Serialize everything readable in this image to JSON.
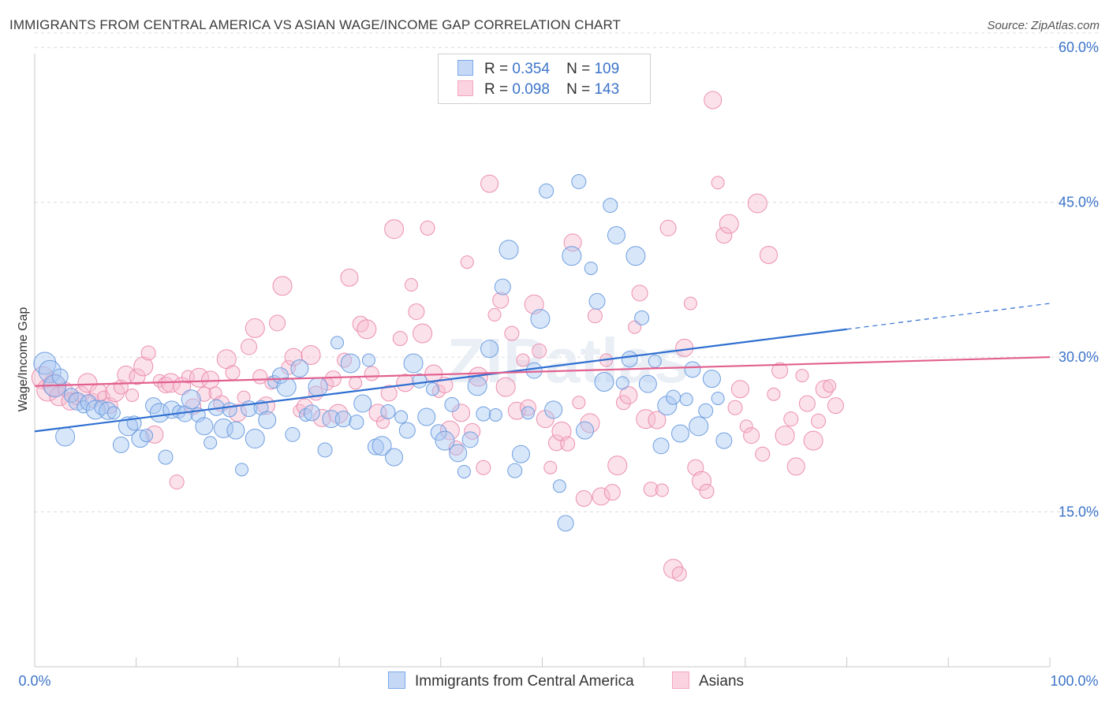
{
  "title": "IMMIGRANTS FROM CENTRAL AMERICA VS ASIAN WAGE/INCOME GAP CORRELATION CHART",
  "source": "Source: ZipAtlas.com",
  "watermark": "ZIPatlas",
  "legend": {
    "rows": [
      {
        "r_label": "R =",
        "r_value": "0.354",
        "n_label": "N =",
        "n_value": "109",
        "color": "#a9c8f2"
      },
      {
        "r_label": "R =",
        "r_value": "0.098",
        "n_label": "N =",
        "n_value": "143",
        "color": "#f6bdd0"
      }
    ]
  },
  "bottom_legend": [
    {
      "label": "Immigrants from Central America",
      "color": "#a9c8f2"
    },
    {
      "label": "Asians",
      "color": "#f6bdd0"
    }
  ],
  "chart_data": {
    "type": "scatter",
    "title": "IMMIGRANTS FROM CENTRAL AMERICA VS ASIAN WAGE/INCOME GAP CORRELATION CHART",
    "xlabel": "",
    "ylabel": "Wage/Income Gap",
    "xlim": [
      0,
      100
    ],
    "ylim": [
      0,
      62
    ],
    "x_tick_labels": [
      "0.0%",
      "100.0%"
    ],
    "y_ticks": [
      15,
      30,
      45,
      60
    ],
    "y_tick_labels": [
      "15.0%",
      "30.0%",
      "45.0%",
      "60.0%"
    ],
    "grid": true,
    "legend_position": "top-center",
    "series": [
      {
        "name": "Immigrants from Central America",
        "color": "#7aa9e8",
        "line_color": "#2f6fd0",
        "trend": {
          "x": [
            0,
            80
          ],
          "y": [
            22.8,
            32.7
          ],
          "dashed_to": [
            100,
            35.2
          ]
        },
        "points": [
          [
            1,
            29.4
          ],
          [
            1.5,
            28.6
          ],
          [
            2,
            27.2
          ],
          [
            2.5,
            28.1
          ],
          [
            3,
            22.3
          ],
          [
            3.6,
            26.3
          ],
          [
            4.2,
            25.7
          ],
          [
            4.8,
            25.2
          ],
          [
            5.3,
            25.6
          ],
          [
            6,
            24.9
          ],
          [
            6.6,
            25.1
          ],
          [
            7.2,
            24.8
          ],
          [
            7.8,
            24.6
          ],
          [
            8.5,
            21.5
          ],
          [
            9.2,
            23.3
          ],
          [
            9.8,
            23.6
          ],
          [
            10.4,
            22.1
          ],
          [
            11,
            22.4
          ],
          [
            11.7,
            25.3
          ],
          [
            12.3,
            24.6
          ],
          [
            12.9,
            20.3
          ],
          [
            13.5,
            24.9
          ],
          [
            14.2,
            24.7
          ],
          [
            14.8,
            24.5
          ],
          [
            15.4,
            25.9
          ],
          [
            16.1,
            24.4
          ],
          [
            16.7,
            23.3
          ],
          [
            17.3,
            21.7
          ],
          [
            17.9,
            25.1
          ],
          [
            18.6,
            23.1
          ],
          [
            19.2,
            24.9
          ],
          [
            19.8,
            22.9
          ],
          [
            20.4,
            19.1
          ],
          [
            21.1,
            25.0
          ],
          [
            21.7,
            22.1
          ],
          [
            22.3,
            25.1
          ],
          [
            22.9,
            23.9
          ],
          [
            23.6,
            27.6
          ],
          [
            24.2,
            28.2
          ],
          [
            24.8,
            27.1
          ],
          [
            25.4,
            22.5
          ],
          [
            26.1,
            28.9
          ],
          [
            26.7,
            24.4
          ],
          [
            27.3,
            24.6
          ],
          [
            27.9,
            27.1
          ],
          [
            28.6,
            21.0
          ],
          [
            29.2,
            24.0
          ],
          [
            29.8,
            31.4
          ],
          [
            30.4,
            24.0
          ],
          [
            31.1,
            29.4
          ],
          [
            31.7,
            23.7
          ],
          [
            32.3,
            25.5
          ],
          [
            32.9,
            29.7
          ],
          [
            33.6,
            21.3
          ],
          [
            34.2,
            21.4
          ],
          [
            34.8,
            24.7
          ],
          [
            35.4,
            20.3
          ],
          [
            36.1,
            24.2
          ],
          [
            36.7,
            22.9
          ],
          [
            37.3,
            29.4
          ],
          [
            37.9,
            27.7
          ],
          [
            38.6,
            24.2
          ],
          [
            39.2,
            26.9
          ],
          [
            39.8,
            22.7
          ],
          [
            40.4,
            21.9
          ],
          [
            41.1,
            25.4
          ],
          [
            41.7,
            20.7
          ],
          [
            42.3,
            18.9
          ],
          [
            42.9,
            22.0
          ],
          [
            43.6,
            27.2
          ],
          [
            44.2,
            24.5
          ],
          [
            44.8,
            30.8
          ],
          [
            45.4,
            24.4
          ],
          [
            46.1,
            36.8
          ],
          [
            46.7,
            40.4
          ],
          [
            47.3,
            19.0
          ],
          [
            47.9,
            20.6
          ],
          [
            48.6,
            24.6
          ],
          [
            49.2,
            28.7
          ],
          [
            49.8,
            33.7
          ],
          [
            50.4,
            46.1
          ],
          [
            51.1,
            24.9
          ],
          [
            51.7,
            17.5
          ],
          [
            52.3,
            13.9
          ],
          [
            52.9,
            39.8
          ],
          [
            53.6,
            47.0
          ],
          [
            54.2,
            22.9
          ],
          [
            54.8,
            38.6
          ],
          [
            55.4,
            35.4
          ],
          [
            56.1,
            27.6
          ],
          [
            56.7,
            44.7
          ],
          [
            57.3,
            41.8
          ],
          [
            57.9,
            27.5
          ],
          [
            58.6,
            29.8
          ],
          [
            59.2,
            39.8
          ],
          [
            59.8,
            33.8
          ],
          [
            60.4,
            27.4
          ],
          [
            61.1,
            29.6
          ],
          [
            61.7,
            21.4
          ],
          [
            62.3,
            25.3
          ],
          [
            62.9,
            26.1
          ],
          [
            63.6,
            22.6
          ],
          [
            64.2,
            25.9
          ],
          [
            64.8,
            28.8
          ],
          [
            65.4,
            23.3
          ],
          [
            66.1,
            24.8
          ],
          [
            66.7,
            27.9
          ],
          [
            67.3,
            26.0
          ],
          [
            67.9,
            21.9
          ]
        ]
      },
      {
        "name": "Asians",
        "color": "#f3a6c0",
        "line_color": "#e2608f",
        "trend": {
          "x": [
            0,
            100
          ],
          "y": [
            27.2,
            30.0
          ]
        },
        "points": [
          [
            0.8,
            28.0
          ],
          [
            1.3,
            26.8
          ],
          [
            1.9,
            27.3
          ],
          [
            2.4,
            26.2
          ],
          [
            3,
            26.9
          ],
          [
            3.5,
            25.7
          ],
          [
            4.1,
            26.0
          ],
          [
            4.6,
            26.4
          ],
          [
            5.2,
            27.5
          ],
          [
            5.7,
            25.8
          ],
          [
            6.3,
            26.6
          ],
          [
            6.8,
            26.1
          ],
          [
            7.4,
            25.3
          ],
          [
            7.9,
            26.6
          ],
          [
            8.5,
            27.1
          ],
          [
            9,
            28.3
          ],
          [
            9.6,
            26.3
          ],
          [
            10.1,
            28.1
          ],
          [
            10.7,
            29.1
          ],
          [
            11.2,
            30.4
          ],
          [
            11.8,
            22.5
          ],
          [
            12.3,
            27.7
          ],
          [
            12.9,
            27.3
          ],
          [
            13.4,
            27.5
          ],
          [
            14,
            17.9
          ],
          [
            14.5,
            27.2
          ],
          [
            15.1,
            28.1
          ],
          [
            15.6,
            25.2
          ],
          [
            16.2,
            28.0
          ],
          [
            16.7,
            26.4
          ],
          [
            17.3,
            27.8
          ],
          [
            17.8,
            26.5
          ],
          [
            18.4,
            25.5
          ],
          [
            18.9,
            29.8
          ],
          [
            19.5,
            28.5
          ],
          [
            20,
            24.6
          ],
          [
            20.6,
            26.1
          ],
          [
            21.1,
            31.0
          ],
          [
            21.7,
            32.8
          ],
          [
            22.2,
            28.1
          ],
          [
            22.8,
            25.3
          ],
          [
            23.3,
            27.5
          ],
          [
            23.9,
            33.3
          ],
          [
            24.4,
            36.9
          ],
          [
            25,
            29.0
          ],
          [
            25.5,
            30.0
          ],
          [
            26.1,
            24.8
          ],
          [
            26.6,
            25.2
          ],
          [
            27.2,
            30.2
          ],
          [
            27.7,
            26.5
          ],
          [
            28.3,
            24.1
          ],
          [
            28.8,
            27.4
          ],
          [
            29.4,
            27.9
          ],
          [
            29.9,
            24.5
          ],
          [
            30.5,
            29.7
          ],
          [
            31,
            37.7
          ],
          [
            31.6,
            27.5
          ],
          [
            32.1,
            33.2
          ],
          [
            32.7,
            32.7
          ],
          [
            33.2,
            28.4
          ],
          [
            33.8,
            24.6
          ],
          [
            34.3,
            23.7
          ],
          [
            34.9,
            26.5
          ],
          [
            35.4,
            42.4
          ],
          [
            36,
            31.8
          ],
          [
            36.5,
            27.5
          ],
          [
            37.1,
            37.0
          ],
          [
            37.6,
            34.4
          ],
          [
            38.2,
            32.3
          ],
          [
            38.7,
            42.5
          ],
          [
            39.3,
            28.4
          ],
          [
            39.8,
            26.7
          ],
          [
            40.4,
            27.3
          ],
          [
            40.9,
            22.9
          ],
          [
            41.5,
            21.2
          ],
          [
            42,
            24.6
          ],
          [
            42.6,
            39.2
          ],
          [
            43.1,
            22.8
          ],
          [
            43.7,
            28.1
          ],
          [
            44.2,
            19.3
          ],
          [
            44.8,
            46.8
          ],
          [
            45.3,
            34.1
          ],
          [
            45.9,
            35.5
          ],
          [
            46.4,
            27.1
          ],
          [
            47,
            32.3
          ],
          [
            47.5,
            24.8
          ],
          [
            48.1,
            29.7
          ],
          [
            48.6,
            25.1
          ],
          [
            49.2,
            35.1
          ],
          [
            49.7,
            30.6
          ],
          [
            50.3,
            24.0
          ],
          [
            50.8,
            19.3
          ],
          [
            51.4,
            21.7
          ],
          [
            51.9,
            22.8
          ],
          [
            52.5,
            21.6
          ],
          [
            53,
            41.1
          ],
          [
            53.6,
            25.6
          ],
          [
            54.1,
            16.3
          ],
          [
            54.7,
            23.6
          ],
          [
            55.2,
            34.0
          ],
          [
            55.8,
            16.5
          ],
          [
            56.3,
            29.7
          ],
          [
            56.9,
            16.9
          ],
          [
            57.4,
            19.5
          ],
          [
            58,
            25.6
          ],
          [
            58.5,
            26.3
          ],
          [
            59.1,
            32.9
          ],
          [
            59.6,
            36.2
          ],
          [
            60.2,
            24.0
          ],
          [
            60.7,
            17.2
          ],
          [
            61.3,
            23.9
          ],
          [
            61.8,
            17.1
          ],
          [
            62.4,
            42.5
          ],
          [
            62.9,
            9.5
          ],
          [
            63.5,
            9.0
          ],
          [
            64,
            30.9
          ],
          [
            64.6,
            35.2
          ],
          [
            65.1,
            19.3
          ],
          [
            65.7,
            18.0
          ],
          [
            66.2,
            17.0
          ],
          [
            66.8,
            54.9
          ],
          [
            67.3,
            46.9
          ],
          [
            67.9,
            41.8
          ],
          [
            68.4,
            42.9
          ],
          [
            69,
            25.1
          ],
          [
            69.5,
            26.9
          ],
          [
            70.1,
            23.3
          ],
          [
            70.6,
            22.4
          ],
          [
            71.2,
            44.9
          ],
          [
            71.7,
            20.6
          ],
          [
            72.3,
            39.9
          ],
          [
            72.8,
            26.4
          ],
          [
            73.4,
            28.7
          ],
          [
            73.9,
            22.4
          ],
          [
            74.5,
            24.0
          ],
          [
            75,
            19.4
          ],
          [
            75.6,
            28.2
          ],
          [
            76.1,
            25.5
          ],
          [
            76.7,
            21.9
          ],
          [
            77.2,
            23.8
          ],
          [
            77.8,
            26.9
          ],
          [
            78.3,
            27.2
          ],
          [
            78.9,
            25.3
          ]
        ]
      }
    ]
  }
}
